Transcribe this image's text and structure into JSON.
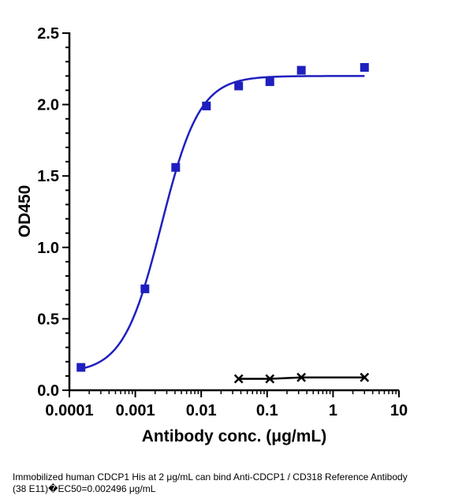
{
  "chart_data": {
    "type": "scatter",
    "xlabel": "Antibody conc. (μg/mL)",
    "ylabel": "OD450",
    "x_scale": "log",
    "xlim": [
      0.0001,
      10
    ],
    "ylim": [
      0,
      2.5
    ],
    "x_ticks": [
      "0.0001",
      "0.001",
      "0.01",
      "0.1",
      "1",
      "10"
    ],
    "y_ticks": [
      "0.0",
      "0.5",
      "1.0",
      "1.5",
      "2.0",
      "2.5"
    ],
    "grid": false,
    "series": [
      {
        "marker": "square",
        "color": "#1f1fbf",
        "x": [
          0.00015,
          0.0014,
          0.0041,
          0.012,
          0.037,
          0.11,
          0.33,
          3.0
        ],
        "y": [
          0.16,
          0.71,
          1.56,
          1.99,
          2.13,
          2.16,
          2.24,
          2.26
        ],
        "fit": {
          "model": "4PL",
          "bottom": 0.12,
          "top": 2.2,
          "ec50": 0.002496,
          "hill": 1.5
        }
      },
      {
        "marker": "x",
        "color": "#000000",
        "x": [
          0.037,
          0.11,
          0.33,
          3.0
        ],
        "y": [
          0.08,
          0.08,
          0.09,
          0.09
        ]
      }
    ]
  },
  "caption": "Immobilized human CDCP1 His at 2  μg/mL can bind  Anti-CDCP1 / CD318 Reference Antibody (38 E11)�EC50=0.002496 μg/mL"
}
